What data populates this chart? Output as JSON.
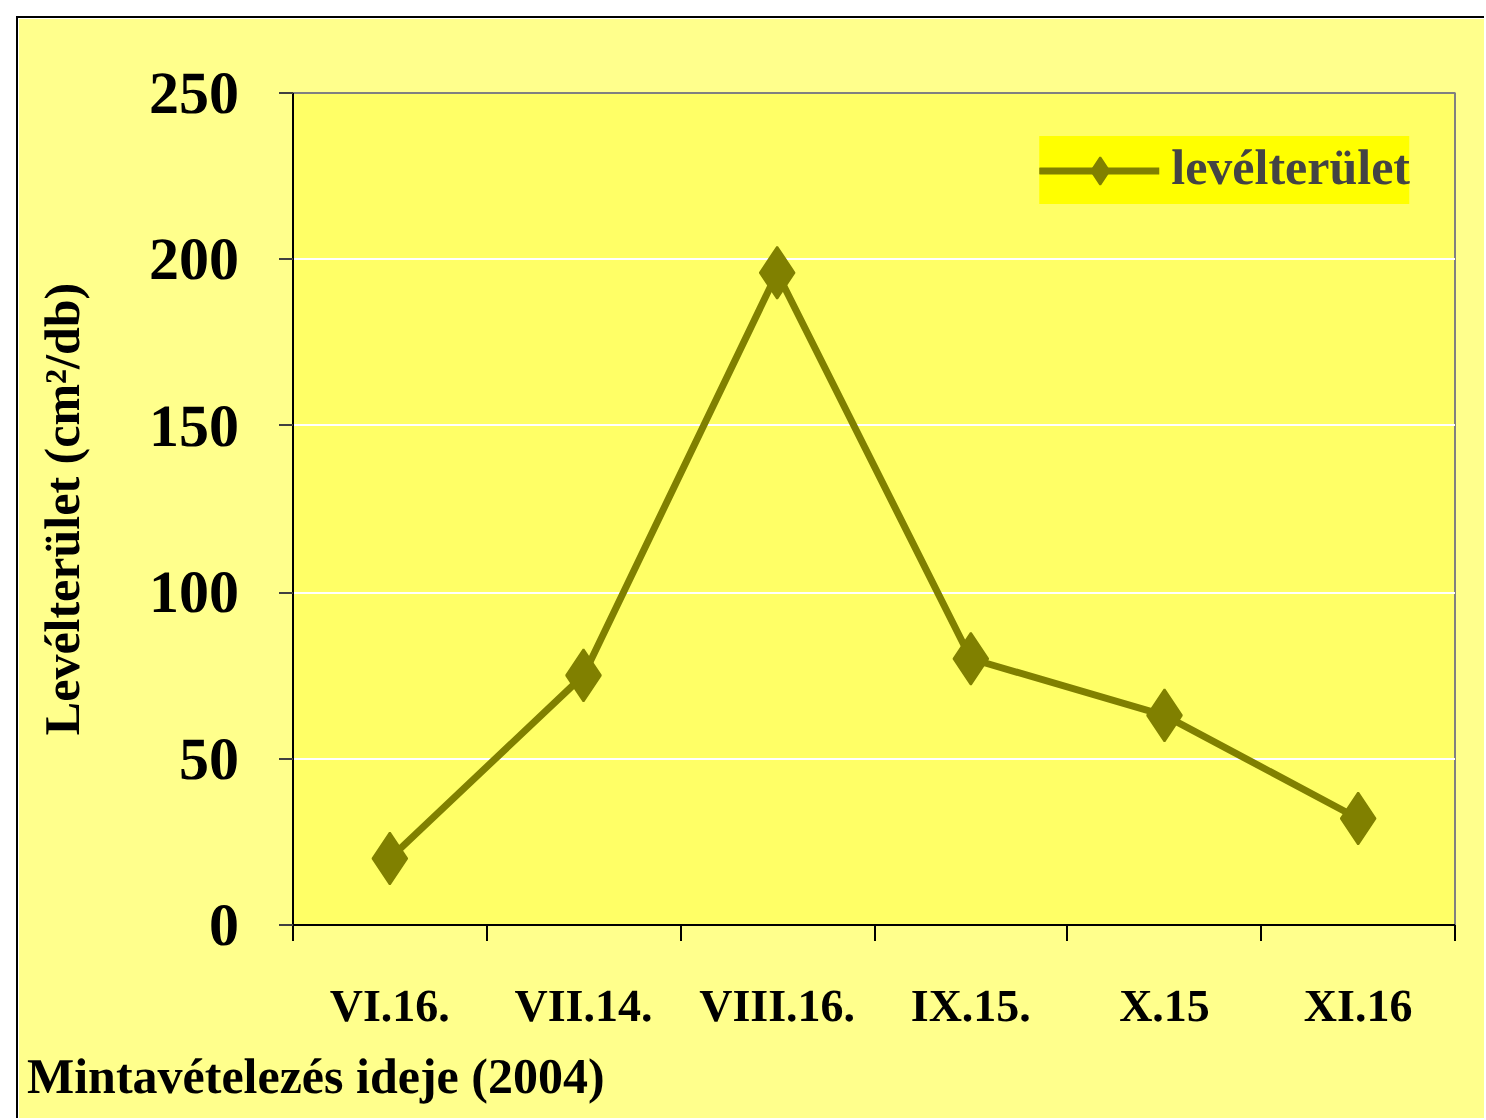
{
  "chart_data": {
    "type": "line",
    "ylabel": "Levélterület (cm²/db)",
    "xlabel": "Mintavételezés ideje (2004)",
    "categories": [
      "VI.16.",
      "VII.14.",
      "VIII.16.",
      "IX.15.",
      "X.15",
      "XI.16"
    ],
    "series": [
      {
        "name": "levélterület",
        "color": "#808000",
        "values": [
          20,
          75,
          196,
          80,
          63,
          32
        ]
      }
    ],
    "ylim": [
      0,
      250
    ],
    "yticks": [
      0,
      50,
      100,
      150,
      200,
      250
    ],
    "grid": "y",
    "legend": "top right",
    "marker": "diamond",
    "line_style": "solid"
  }
}
